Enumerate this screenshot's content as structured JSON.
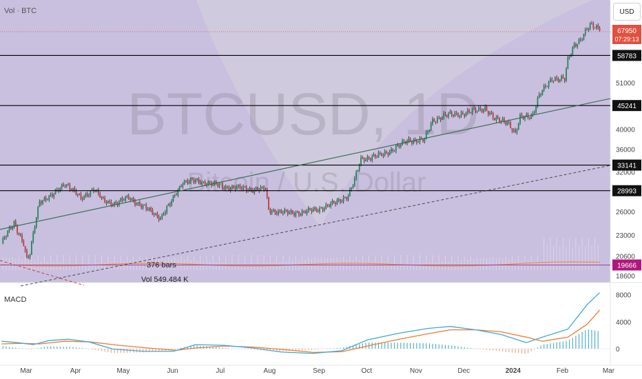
{
  "header": {
    "vol_label": "Vol · BTC",
    "currency_button": "USD"
  },
  "watermark": {
    "symbol": "BTCUSD, 1D",
    "name": "Bitcoin / U.S. Dollar"
  },
  "price_badge": {
    "price": "67950",
    "countdown": "07:29:13"
  },
  "colors": {
    "background": "#c9bfdf",
    "up": "#1a8a57",
    "down": "#c23b3b",
    "badge": "#e2503f",
    "volume_ma": "#f08a3c",
    "macd_line": "#3fa7d6",
    "signal_line": "#f07a30",
    "hist_pos": "#4fb0c6",
    "hist_neg": "#f2a58c",
    "level_lines": "#000000",
    "trend_line": "#2e6b4a"
  },
  "annotations": {
    "bars_label": "376 bars",
    "vol_label": "Vol 549.484 K",
    "macd_label": "MACD"
  },
  "levels": [
    {
      "value": 58783,
      "label": "58783"
    },
    {
      "value": 45241,
      "label": "45241"
    },
    {
      "value": 33141,
      "label": "33141"
    },
    {
      "value": 28993,
      "label": "28993"
    },
    {
      "value": 19666,
      "label": "19666"
    }
  ],
  "chart_data": {
    "type": "candlestick",
    "symbol": "BTCUSD",
    "timeframe": "1D",
    "scale": "log",
    "price_ticks": [
      18600,
      20600,
      23000,
      26000,
      32000,
      36000,
      40000,
      51000
    ],
    "x_labels": [
      "Mar",
      "Apr",
      "May",
      "Jun",
      "Jul",
      "Aug",
      "Sep",
      "Oct",
      "Nov",
      "Dec",
      "2024",
      "Feb",
      "Mar"
    ],
    "x_label_days": [
      0,
      31,
      61,
      92,
      122,
      153,
      184,
      214,
      245,
      275,
      306,
      337,
      366
    ],
    "close_path": [
      [
        0,
        22000
      ],
      [
        8,
        24500
      ],
      [
        14,
        22000
      ],
      [
        16,
        20200
      ],
      [
        18,
        20800
      ],
      [
        24,
        27500
      ],
      [
        32,
        28200
      ],
      [
        40,
        30200
      ],
      [
        50,
        27800
      ],
      [
        58,
        29300
      ],
      [
        64,
        27500
      ],
      [
        72,
        27100
      ],
      [
        80,
        28000
      ],
      [
        88,
        26800
      ],
      [
        100,
        25200
      ],
      [
        106,
        27000
      ],
      [
        114,
        30400
      ],
      [
        122,
        30500
      ],
      [
        130,
        30200
      ],
      [
        140,
        29600
      ],
      [
        158,
        29200
      ],
      [
        166,
        29200
      ],
      [
        168,
        26200
      ],
      [
        180,
        25800
      ],
      [
        190,
        25900
      ],
      [
        200,
        26400
      ],
      [
        210,
        27200
      ],
      [
        218,
        28300
      ],
      [
        222,
        30600
      ],
      [
        226,
        34200
      ],
      [
        240,
        35000
      ],
      [
        256,
        37700
      ],
      [
        266,
        37800
      ],
      [
        271,
        41800
      ],
      [
        278,
        42900
      ],
      [
        292,
        43500
      ],
      [
        304,
        44700
      ],
      [
        310,
        42000
      ],
      [
        318,
        41700
      ],
      [
        323,
        38900
      ],
      [
        326,
        42400
      ],
      [
        334,
        43200
      ],
      [
        338,
        47600
      ],
      [
        346,
        52200
      ],
      [
        354,
        51800
      ],
      [
        356,
        57300
      ],
      [
        360,
        62200
      ],
      [
        364,
        63900
      ],
      [
        370,
        68700
      ],
      [
        376,
        67950
      ]
    ],
    "volume_label": "Vol 549.484 K",
    "macd_ticks": [
      0,
      4000,
      8000
    ],
    "macd_line": [
      [
        0,
        1100
      ],
      [
        10,
        900
      ],
      [
        20,
        600
      ],
      [
        30,
        1200
      ],
      [
        42,
        1400
      ],
      [
        55,
        1000
      ],
      [
        70,
        -50
      ],
      [
        90,
        -400
      ],
      [
        108,
        -400
      ],
      [
        122,
        600
      ],
      [
        140,
        500
      ],
      [
        158,
        100
      ],
      [
        176,
        -500
      ],
      [
        196,
        -700
      ],
      [
        214,
        -300
      ],
      [
        230,
        1300
      ],
      [
        250,
        2300
      ],
      [
        268,
        3000
      ],
      [
        282,
        3300
      ],
      [
        298,
        2800
      ],
      [
        314,
        2100
      ],
      [
        330,
        900
      ],
      [
        340,
        1700
      ],
      [
        356,
        2900
      ],
      [
        368,
        6500
      ],
      [
        376,
        8300
      ]
    ],
    "signal_line": [
      [
        0,
        700
      ],
      [
        12,
        800
      ],
      [
        24,
        700
      ],
      [
        40,
        1100
      ],
      [
        56,
        1000
      ],
      [
        72,
        550
      ],
      [
        92,
        100
      ],
      [
        110,
        -250
      ],
      [
        122,
        100
      ],
      [
        140,
        400
      ],
      [
        158,
        250
      ],
      [
        176,
        -100
      ],
      [
        196,
        -550
      ],
      [
        214,
        -450
      ],
      [
        230,
        400
      ],
      [
        250,
        1400
      ],
      [
        268,
        2200
      ],
      [
        282,
        2800
      ],
      [
        298,
        2800
      ],
      [
        314,
        2500
      ],
      [
        330,
        1700
      ],
      [
        340,
        1100
      ],
      [
        356,
        1700
      ],
      [
        368,
        3600
      ],
      [
        376,
        5700
      ]
    ]
  }
}
